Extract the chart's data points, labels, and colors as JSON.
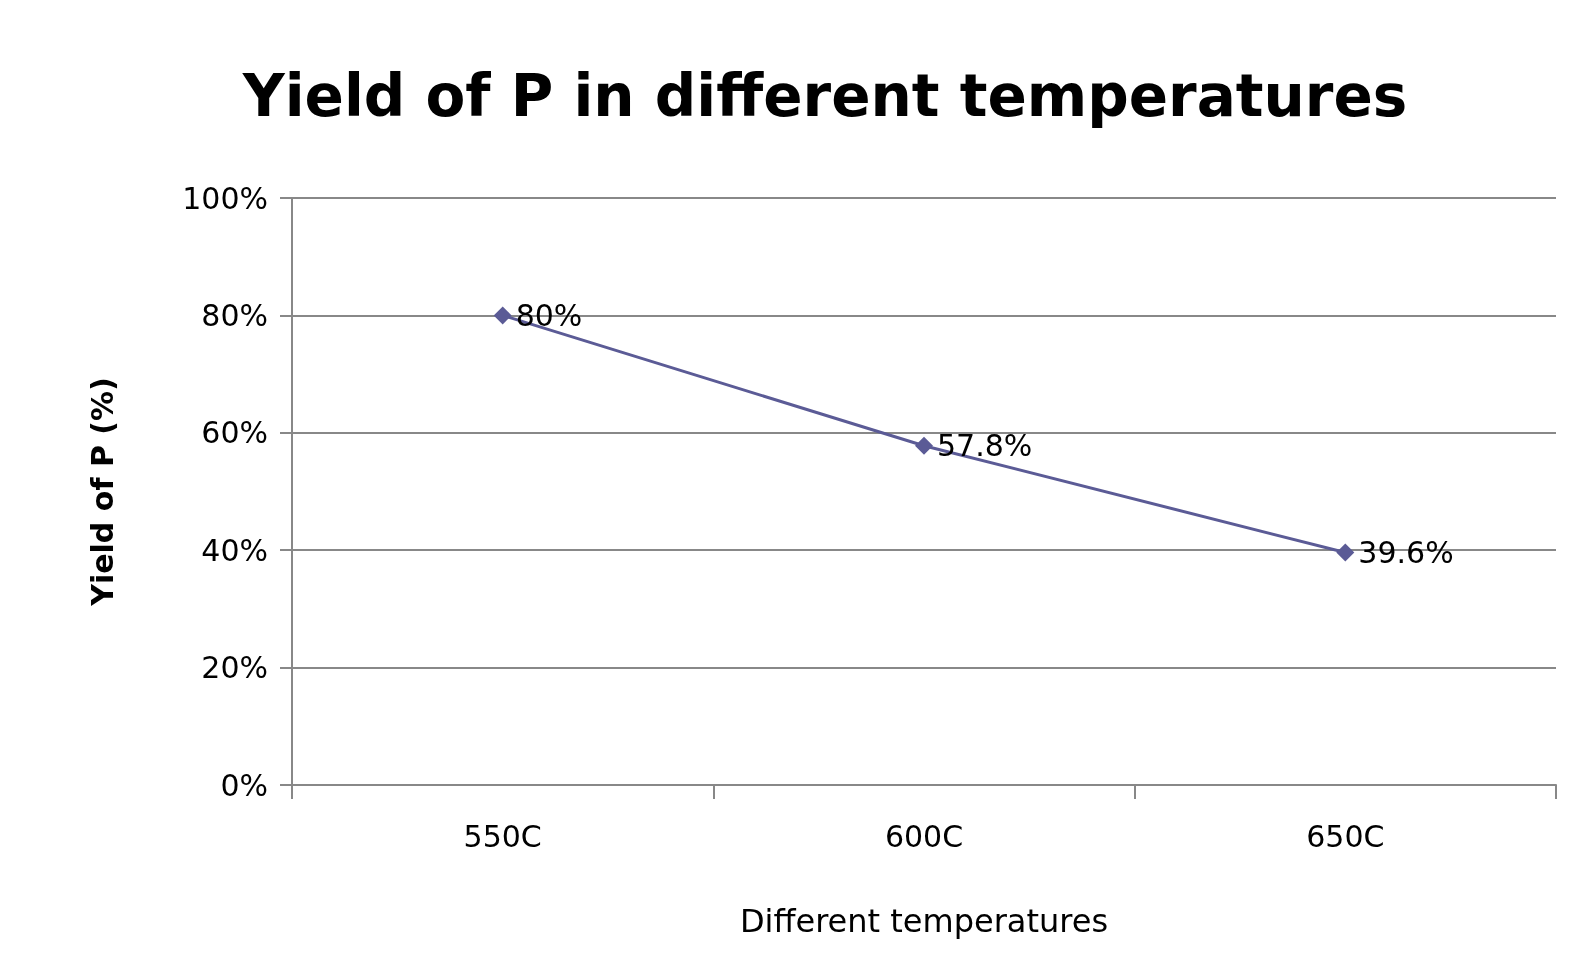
{
  "chart_data": {
    "type": "line",
    "title": "Yield of P in different temperatures",
    "xlabel": "Different temperatures",
    "ylabel": "Yield of P (%)",
    "categories": [
      "550C",
      "600C",
      "650C"
    ],
    "series": [
      {
        "color": "#5b5b96",
        "values": [
          80,
          57.8,
          39.6
        ],
        "value_labels": [
          "80%",
          "57.8%",
          "39.6%"
        ]
      }
    ],
    "ylim": [
      0,
      100
    ],
    "yticks": [
      {
        "value": 0,
        "label": "0%"
      },
      {
        "value": 20,
        "label": "20%"
      },
      {
        "value": 40,
        "label": "40%"
      },
      {
        "value": 60,
        "label": "60%"
      },
      {
        "value": 80,
        "label": "80%"
      },
      {
        "value": 100,
        "label": "100%"
      }
    ],
    "grid": "y",
    "marker": "diamond",
    "line_style": "solid"
  }
}
